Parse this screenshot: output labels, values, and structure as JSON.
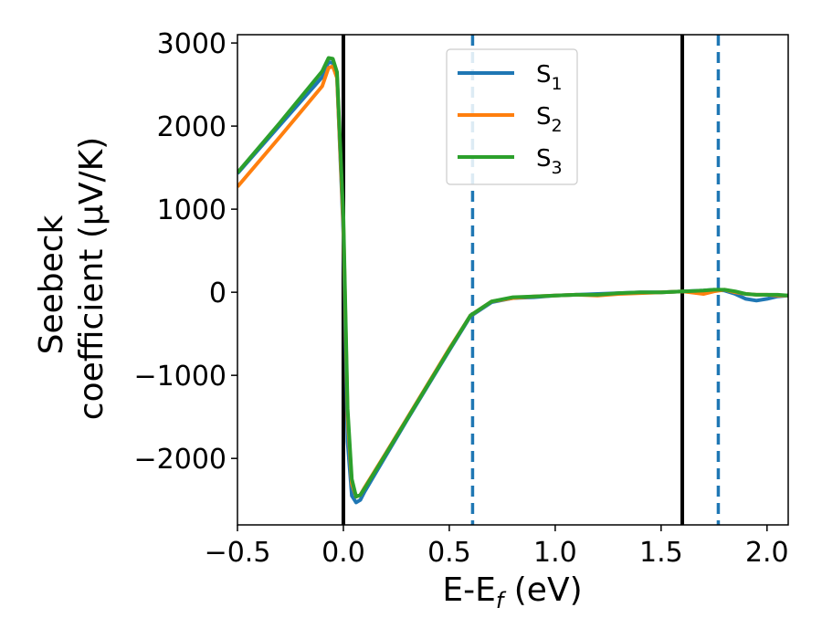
{
  "chart_data": {
    "type": "line",
    "xlabel": "E-E_f (eV)",
    "ylabel_line1": "Seebeck",
    "ylabel_line2": "coefficient  (μV/K)",
    "xlim": [
      -0.5,
      2.1
    ],
    "ylim": [
      -2800,
      3100
    ],
    "x_ticks": [
      -0.5,
      0.0,
      0.5,
      1.0,
      1.5,
      2.0
    ],
    "x_tick_labels": [
      "−0.5",
      "0.0",
      "0.5",
      "1.0",
      "1.5",
      "2.0"
    ],
    "y_ticks": [
      -2000,
      -1000,
      0,
      1000,
      2000,
      3000
    ],
    "y_tick_labels": [
      "−2000",
      "−1000",
      "0",
      "1000",
      "2000",
      "3000"
    ],
    "grid": false,
    "legend_position": "top-center",
    "vertical_lines": [
      {
        "x": 0.0,
        "style": "solid",
        "color": "#000000"
      },
      {
        "x": 1.6,
        "style": "solid",
        "color": "#000000"
      },
      {
        "x": 0.61,
        "style": "dashed",
        "color": "#1f77b4"
      },
      {
        "x": 1.77,
        "style": "dashed",
        "color": "#1f77b4"
      }
    ],
    "series": [
      {
        "name": "S1",
        "color": "#1f77b4",
        "x": [
          -0.5,
          -0.3,
          -0.1,
          -0.07,
          -0.05,
          -0.03,
          0.0,
          0.02,
          0.04,
          0.06,
          0.08,
          0.1,
          0.2,
          0.3,
          0.4,
          0.5,
          0.6,
          0.7,
          0.8,
          0.9,
          1.0,
          1.1,
          1.2,
          1.3,
          1.4,
          1.5,
          1.6,
          1.7,
          1.75,
          1.8,
          1.85,
          1.9,
          1.95,
          2.0,
          2.05,
          2.1
        ],
        "y": [
          1430,
          2010,
          2590,
          2770,
          2760,
          2600,
          700,
          -1800,
          -2450,
          -2530,
          -2500,
          -2400,
          -1970,
          -1540,
          -1120,
          -700,
          -290,
          -120,
          -70,
          -60,
          -40,
          -30,
          -20,
          -10,
          0,
          0,
          10,
          20,
          30,
          20,
          -20,
          -80,
          -100,
          -80,
          -50,
          -40
        ]
      },
      {
        "name": "S2",
        "color": "#ff7f0e",
        "x": [
          -0.5,
          -0.3,
          -0.1,
          -0.07,
          -0.05,
          -0.03,
          0.0,
          0.02,
          0.04,
          0.06,
          0.08,
          0.1,
          0.2,
          0.3,
          0.4,
          0.5,
          0.6,
          0.7,
          0.8,
          0.9,
          1.0,
          1.1,
          1.2,
          1.3,
          1.4,
          1.5,
          1.6,
          1.7,
          1.75,
          1.8,
          1.85,
          1.9,
          1.95,
          2.0,
          2.05,
          2.1
        ],
        "y": [
          1270,
          1870,
          2480,
          2700,
          2720,
          2580,
          800,
          -1500,
          -2300,
          -2460,
          -2440,
          -2350,
          -1940,
          -1520,
          -1100,
          -680,
          -280,
          -110,
          -70,
          -50,
          -40,
          -30,
          -40,
          -20,
          -10,
          0,
          10,
          -20,
          10,
          30,
          0,
          -20,
          -30,
          -30,
          -40,
          -40
        ]
      },
      {
        "name": "S3",
        "color": "#2ca02c",
        "x": [
          -0.5,
          -0.3,
          -0.1,
          -0.07,
          -0.05,
          -0.03,
          0.0,
          0.02,
          0.04,
          0.06,
          0.08,
          0.1,
          0.2,
          0.3,
          0.4,
          0.5,
          0.6,
          0.7,
          0.8,
          0.9,
          1.0,
          1.1,
          1.2,
          1.3,
          1.4,
          1.5,
          1.6,
          1.7,
          1.75,
          1.8,
          1.85,
          1.9,
          1.95,
          2.0,
          2.05,
          2.1
        ],
        "y": [
          1440,
          2040,
          2660,
          2820,
          2810,
          2650,
          900,
          -1400,
          -2250,
          -2460,
          -2440,
          -2360,
          -1950,
          -1530,
          -1110,
          -690,
          -280,
          -110,
          -60,
          -50,
          -40,
          -30,
          -30,
          -10,
          0,
          0,
          10,
          20,
          30,
          30,
          10,
          -20,
          -30,
          -30,
          -30,
          -40
        ]
      }
    ]
  },
  "legend": [
    {
      "base": "S",
      "sub": "1",
      "color": "#1f77b4"
    },
    {
      "base": "S",
      "sub": "2",
      "color": "#ff7f0e"
    },
    {
      "base": "S",
      "sub": "3",
      "color": "#2ca02c"
    }
  ]
}
